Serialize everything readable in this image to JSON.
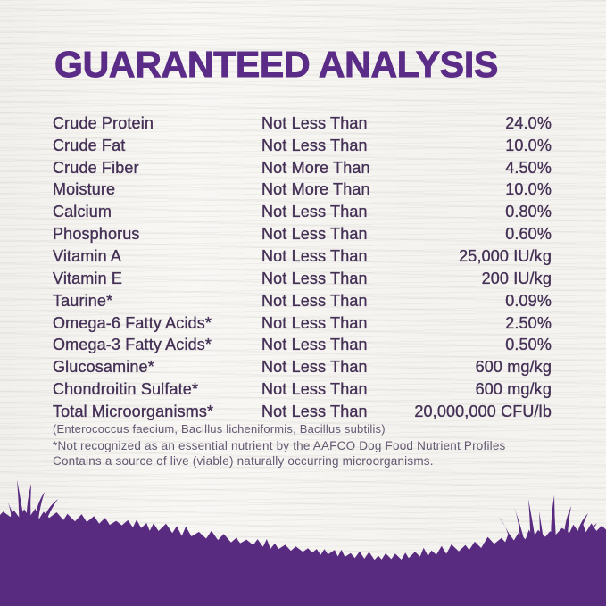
{
  "header": {
    "title": "GUARANTEED ANALYSIS"
  },
  "analysis_table": {
    "rows": [
      {
        "nutrient": "Crude Protein",
        "qualifier": "Not Less Than",
        "value": "24.0%"
      },
      {
        "nutrient": "Crude Fat",
        "qualifier": "Not Less Than",
        "value": "10.0%"
      },
      {
        "nutrient": "Crude Fiber",
        "qualifier": "Not More Than",
        "value": "4.50%"
      },
      {
        "nutrient": "Moisture",
        "qualifier": "Not More Than",
        "value": "10.0%"
      },
      {
        "nutrient": "Calcium",
        "qualifier": "Not Less Than",
        "value": "0.80%"
      },
      {
        "nutrient": "Phosphorus",
        "qualifier": "Not Less Than",
        "value": "0.60%"
      },
      {
        "nutrient": "Vitamin A",
        "qualifier": "Not Less Than",
        "value": "25,000 IU/kg"
      },
      {
        "nutrient": "Vitamin E",
        "qualifier": "Not Less Than",
        "value": "200 IU/kg"
      },
      {
        "nutrient": "Taurine*",
        "qualifier": "Not Less Than",
        "value": "0.09%"
      },
      {
        "nutrient": "Omega-6 Fatty Acids*",
        "qualifier": "Not Less Than",
        "value": "2.50%"
      },
      {
        "nutrient": "Omega-3 Fatty Acids*",
        "qualifier": "Not Less Than",
        "value": "0.50%"
      },
      {
        "nutrient": "Glucosamine*",
        "qualifier": "Not Less Than",
        "value": "600 mg/kg"
      },
      {
        "nutrient": "Chondroitin Sulfate*",
        "qualifier": "Not Less Than",
        "value": "600 mg/kg"
      },
      {
        "nutrient": "Total Microorganisms*",
        "qualifier": "Not Less Than",
        "value": "20,000,000 CFU/lb"
      }
    ]
  },
  "notes": {
    "species_list": "(Enterococcus faecium, Bacillus licheniformis, Bacillus subtilis)",
    "footnote_line1": "*Not recognized as an essential nutrient by the AAFCO Dog Food Nutrient Profiles",
    "footnote_line2": "Contains a source of live (viable) naturally occurring microorganisms."
  },
  "colors": {
    "title_purple": "#5b2c87",
    "table_text_purple": "#453156",
    "note_text_purple": "#645872",
    "silhouette_purple": "#582a80",
    "background": "#f8f7f4"
  }
}
